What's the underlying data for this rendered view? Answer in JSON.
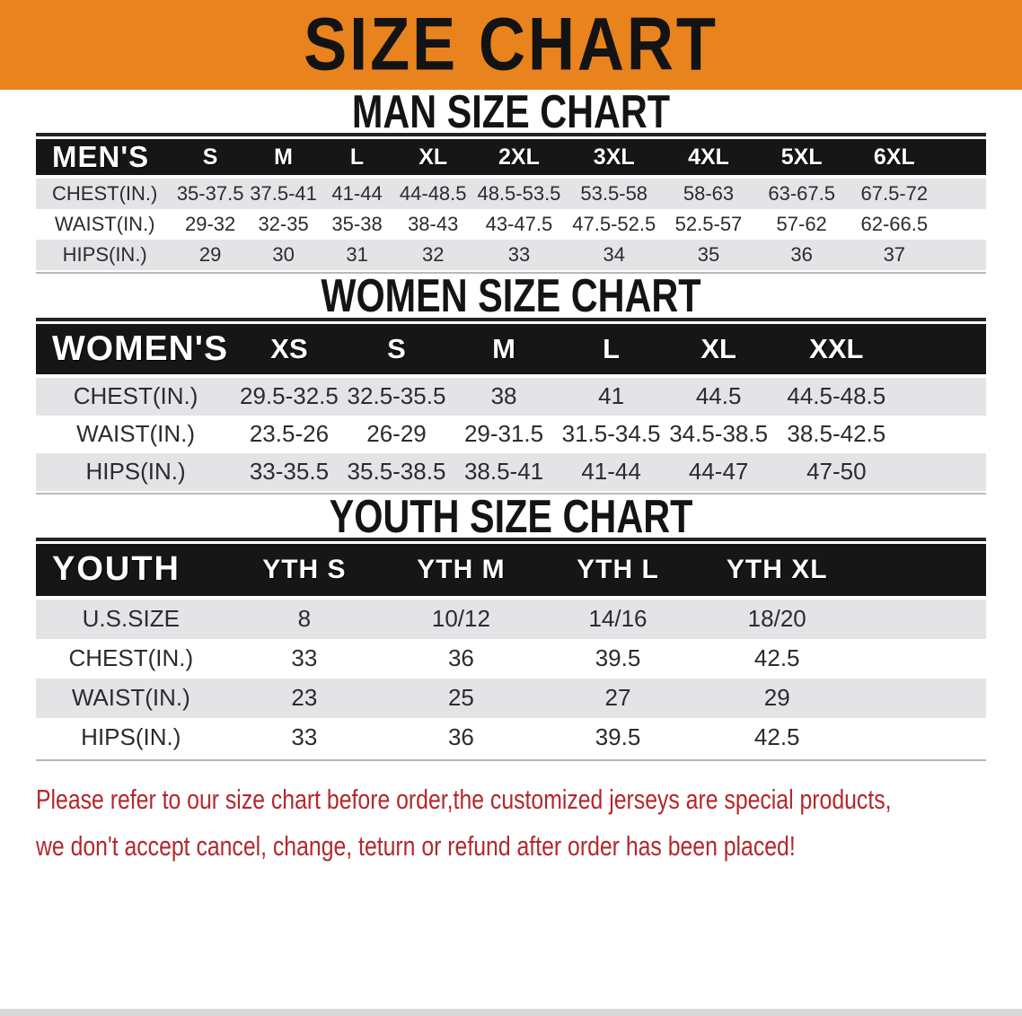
{
  "banner": {
    "title": "SIZE CHART",
    "bg_color": "#E8831E",
    "text_color": "#131313"
  },
  "sections": {
    "men": {
      "heading": "MAN SIZE CHART",
      "table": {
        "corner": "MEN'S",
        "columns": [
          "S",
          "M",
          "L",
          "XL",
          "2XL",
          "3XL",
          "4XL",
          "5XL",
          "6XL"
        ],
        "rows": [
          {
            "label": "CHEST(IN.)",
            "values": [
              "35-37.5",
              "37.5-41",
              "41-44",
              "44-48.5",
              "48.5-53.5",
              "53.5-58",
              "58-63",
              "63-67.5",
              "67.5-72"
            ]
          },
          {
            "label": "WAIST(IN.)",
            "values": [
              "29-32",
              "32-35",
              "35-38",
              "38-43",
              "43-47.5",
              "47.5-52.5",
              "52.5-57",
              "57-62",
              "62-66.5"
            ]
          },
          {
            "label": "HIPS(IN.)",
            "values": [
              "29",
              "30",
              "31",
              "32",
              "33",
              "34",
              "35",
              "36",
              "37"
            ]
          }
        ]
      }
    },
    "women": {
      "heading": "WOMEN SIZE CHART",
      "table": {
        "corner": "WOMEN'S",
        "columns": [
          "XS",
          "S",
          "M",
          "L",
          "XL",
          "XXL"
        ],
        "rows": [
          {
            "label": "CHEST(IN.)",
            "values": [
              "29.5-32.5",
              "32.5-35.5",
              "38",
              "41",
              "44.5",
              "44.5-48.5"
            ]
          },
          {
            "label": "WAIST(IN.)",
            "values": [
              "23.5-26",
              "26-29",
              "29-31.5",
              "31.5-34.5",
              "34.5-38.5",
              "38.5-42.5"
            ]
          },
          {
            "label": "HIPS(IN.)",
            "values": [
              "33-35.5",
              "35.5-38.5",
              "38.5-41",
              "41-44",
              "44-47",
              "47-50"
            ]
          }
        ]
      }
    },
    "youth": {
      "heading": "YOUTH SIZE CHART",
      "table": {
        "corner": "YOUTH",
        "columns": [
          "YTH S",
          "YTH M",
          "YTH L",
          "YTH XL"
        ],
        "rows": [
          {
            "label": "U.S.SIZE",
            "values": [
              "8",
              "10/12",
              "14/16",
              "18/20"
            ]
          },
          {
            "label": "CHEST(IN.)",
            "values": [
              "33",
              "36",
              "39.5",
              "42.5"
            ]
          },
          {
            "label": "WAIST(IN.)",
            "values": [
              "23",
              "25",
              "27",
              "29"
            ]
          },
          {
            "label": "HIPS(IN.)",
            "values": [
              "33",
              "36",
              "39.5",
              "42.5"
            ]
          }
        ]
      }
    }
  },
  "footer": {
    "line1": "Please refer to our size chart before order,the customized jerseys are special products,",
    "line2": "we don't accept cancel, change, teturn or refund after order has been placed!",
    "text_color": "#B3282C"
  },
  "colors": {
    "header_bar": "#161616",
    "row_alt": "#E4E4E7",
    "table_top_border": "#242424"
  }
}
